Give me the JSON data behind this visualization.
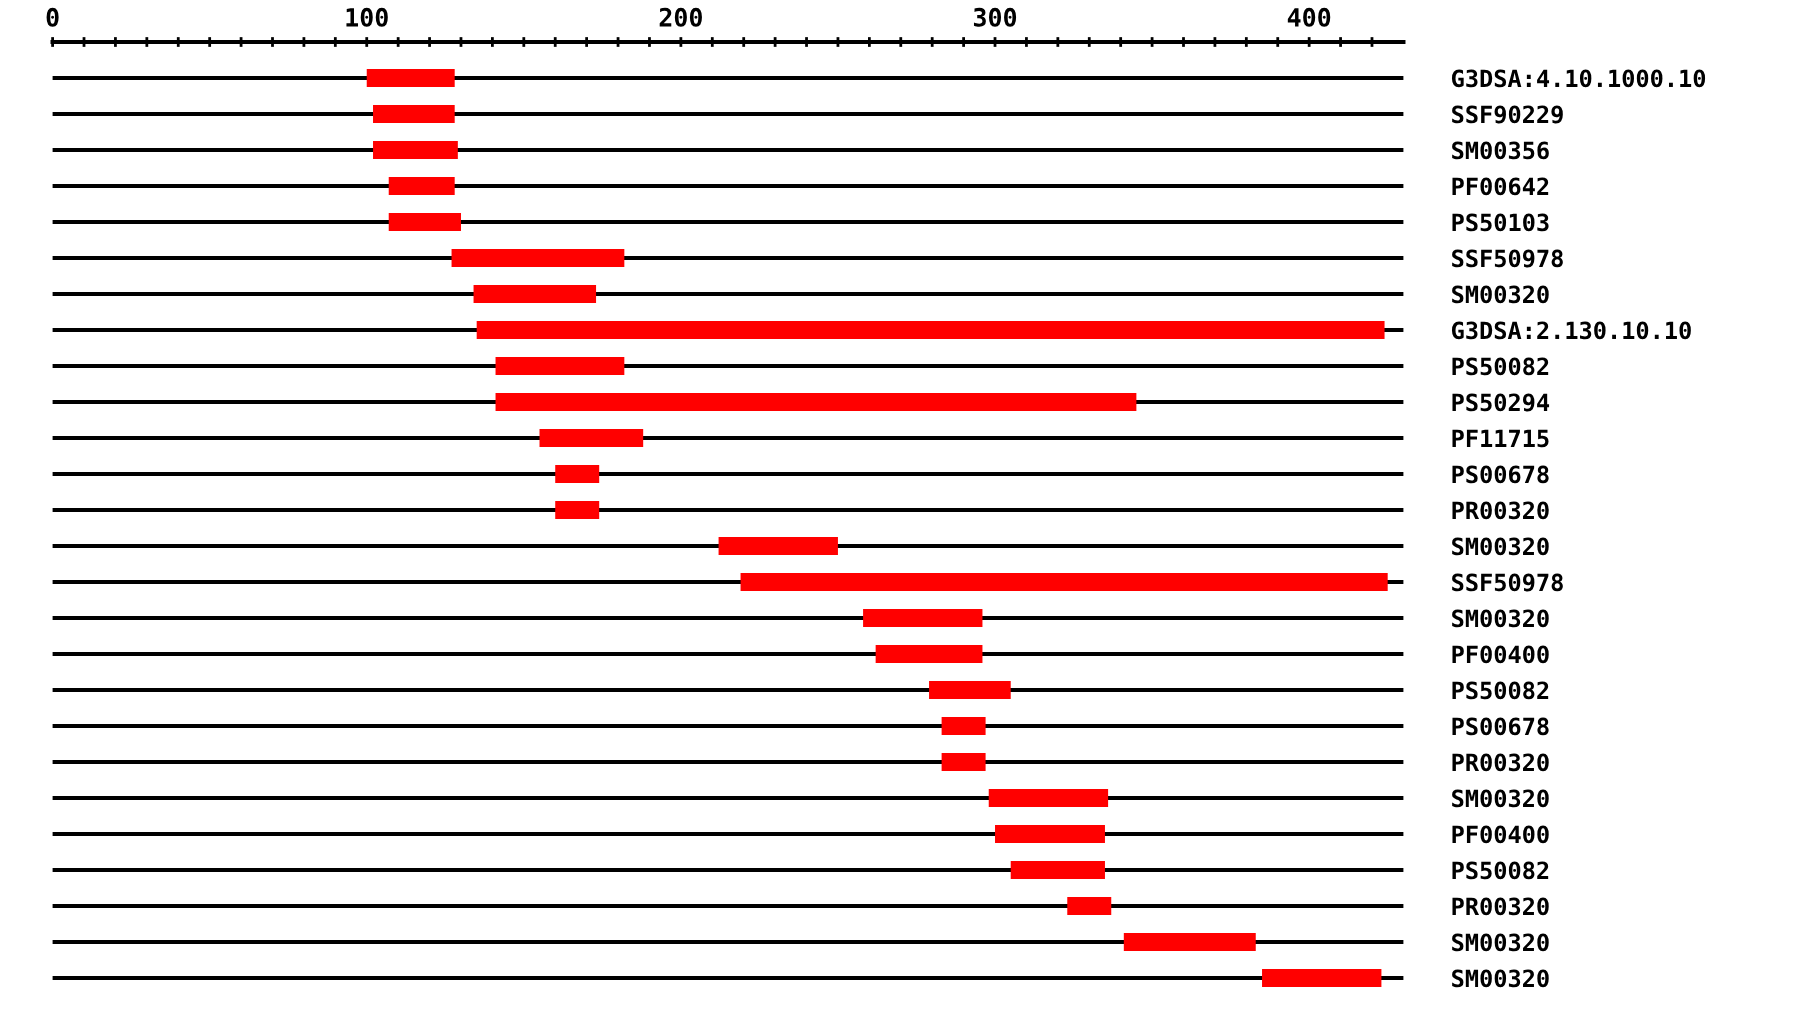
{
  "chart_data": {
    "type": "bar",
    "orientation": "horizontal",
    "color": "#ff0000",
    "grid": "y",
    "categories": [
      "G3DSA:4.10.1000.10",
      "SSF90229",
      "SM00356",
      "PF00642",
      "PS50103",
      "SSF50978",
      "SM00320",
      "G3DSA:2.130.10.10",
      "PS50082",
      "PS50294",
      "PF11715",
      "PS00678",
      "PR00320",
      "SM00320",
      "SSF50978",
      "SM00320",
      "PF00400",
      "PS50082",
      "PS00678",
      "PR00320",
      "SM00320",
      "PF00400",
      "PS50082",
      "PR00320",
      "SM00320",
      "SM00320"
    ],
    "base": [
      100,
      102,
      102,
      107,
      107,
      127,
      134,
      135,
      141,
      141,
      155,
      160,
      160,
      212,
      219,
      258,
      262,
      279,
      283,
      283,
      298,
      300,
      305,
      323,
      341,
      385
    ],
    "values": [
      28,
      26,
      27,
      21,
      23,
      55,
      39,
      289,
      41,
      204,
      33,
      14,
      14,
      38,
      206,
      38,
      34,
      26,
      14,
      14,
      38,
      35,
      30,
      14,
      42,
      38
    ],
    "xlim": [
      0,
      430
    ],
    "xticks": [
      0,
      {
        "value": 10,
        "label": null
      },
      {
        "value": 20,
        "label": null
      },
      {
        "value": 30,
        "label": null
      },
      {
        "value": 40,
        "label": null
      },
      {
        "value": 50,
        "label": null
      },
      {
        "value": 60,
        "label": null
      },
      {
        "value": 70,
        "label": null
      },
      {
        "value": 80,
        "label": null
      },
      {
        "value": 90,
        "label": null
      },
      100,
      {
        "value": 110,
        "label": null
      },
      {
        "value": 120,
        "label": null
      },
      {
        "value": 130,
        "label": null
      },
      {
        "value": 140,
        "label": null
      },
      {
        "value": 150,
        "label": null
      },
      {
        "value": 160,
        "label": null
      },
      {
        "value": 170,
        "label": null
      },
      {
        "value": 180,
        "label": null
      },
      {
        "value": 190,
        "label": null
      },
      200,
      {
        "value": 210,
        "label": null
      },
      {
        "value": 220,
        "label": null
      },
      {
        "value": 230,
        "label": null
      },
      {
        "value": 240,
        "label": null
      },
      {
        "value": 250,
        "label": null
      },
      {
        "value": 260,
        "label": null
      },
      {
        "value": 270,
        "label": null
      },
      {
        "value": 280,
        "label": null
      },
      {
        "value": 290,
        "label": null
      },
      300,
      {
        "value": 310,
        "label": null
      },
      {
        "value": 320,
        "label": null
      },
      {
        "value": 330,
        "label": null
      },
      {
        "value": 340,
        "label": null
      },
      {
        "value": 350,
        "label": null
      },
      {
        "value": 360,
        "label": null
      },
      {
        "value": 370,
        "label": null
      },
      {
        "value": 380,
        "label": null
      },
      {
        "value": 390,
        "label": null
      },
      400,
      {
        "value": 410,
        "label": null
      },
      {
        "value": 420,
        "label": null
      }
    ]
  }
}
